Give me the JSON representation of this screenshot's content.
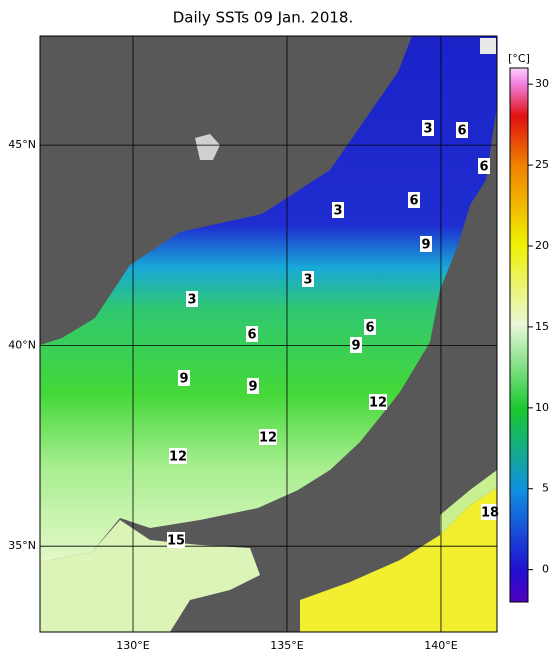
{
  "title": "Daily SSTs 09 Jan. 2018.",
  "map": {
    "lonlim": [
      126.98,
      141.82
    ],
    "latlim": [
      32.86,
      47.72
    ],
    "lon_ticks": [
      {
        "value": 130,
        "label": "130°E"
      },
      {
        "value": 135,
        "label": "135°E"
      },
      {
        "value": 140,
        "label": "140°E"
      }
    ],
    "lat_ticks": [
      {
        "value": 35,
        "label": "35°N"
      },
      {
        "value": 40,
        "label": "40°N"
      },
      {
        "value": 45,
        "label": "45°N"
      }
    ]
  },
  "colorbar": {
    "unit": "[°C]",
    "lim": [
      -2,
      31
    ],
    "ticks": [
      0,
      5,
      10,
      15,
      20,
      25,
      30
    ]
  },
  "contour_labels": [
    3,
    6,
    6,
    3,
    6,
    9,
    3,
    3,
    6,
    6,
    9,
    9,
    9,
    12,
    12,
    12,
    15,
    18
  ]
}
